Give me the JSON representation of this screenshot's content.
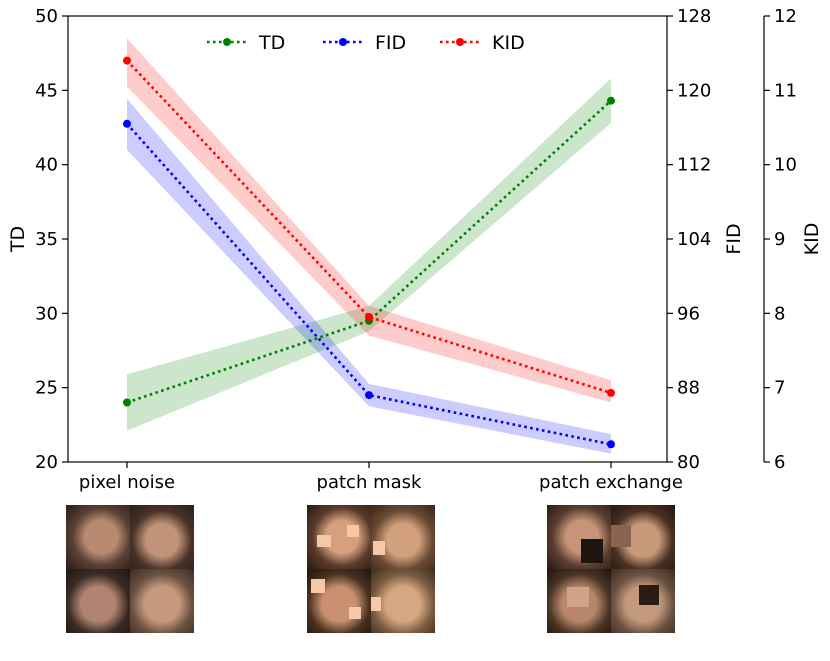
{
  "chart_data": {
    "type": "line",
    "categories": [
      "pixel noise",
      "patch mask",
      "patch exchange"
    ],
    "series": [
      {
        "name": "TD",
        "axis": "TD",
        "color": "#008000",
        "values": [
          24.0,
          29.5,
          44.3
        ],
        "band_low": [
          22.1,
          28.8,
          42.8
        ],
        "band_high": [
          25.9,
          30.5,
          45.8
        ]
      },
      {
        "name": "FID",
        "axis": "FID",
        "color": "#0000ff",
        "values": [
          116.4,
          87.2,
          81.9
        ],
        "band_low": [
          113.6,
          86.0,
          80.9
        ],
        "band_high": [
          119.1,
          88.4,
          83.0
        ]
      },
      {
        "name": "KID",
        "axis": "KID",
        "color": "#ff0000",
        "values": [
          11.4,
          7.95,
          6.93
        ],
        "band_low": [
          11.05,
          7.7,
          6.8
        ],
        "band_high": [
          11.7,
          8.1,
          7.1
        ]
      }
    ],
    "axes": {
      "TD": {
        "label": "TD",
        "range": [
          20,
          50
        ],
        "ticks": [
          20,
          25,
          30,
          35,
          40,
          45,
          50
        ]
      },
      "FID": {
        "label": "FID",
        "range": [
          80,
          128
        ],
        "ticks": [
          80,
          88,
          96,
          104,
          112,
          120,
          128
        ]
      },
      "KID": {
        "label": "KID",
        "range": [
          6,
          12
        ],
        "ticks": [
          6,
          7,
          8,
          9,
          10,
          11,
          12
        ]
      }
    },
    "legend_position": "top-center",
    "grid": false
  },
  "thumbnails": [
    {
      "name": "pixel-noise-samples"
    },
    {
      "name": "patch-mask-samples"
    },
    {
      "name": "patch-exchange-samples"
    }
  ]
}
